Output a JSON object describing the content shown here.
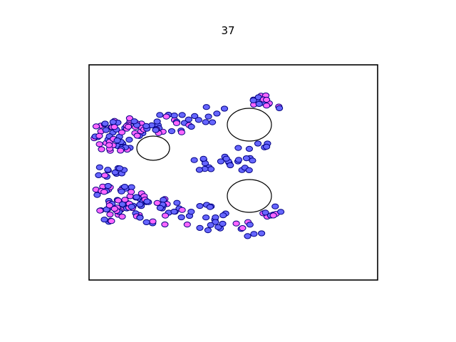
{
  "header": {
    "title": "37"
  },
  "colors": {
    "particle_pink": "#ff66ff",
    "particle_blue": "#6666ff",
    "outline": "#000080",
    "obstacle_fill": "#ffffff",
    "frame": "#000000"
  },
  "scene": {
    "particle_colors": [
      "pink",
      "blue"
    ]
  }
}
